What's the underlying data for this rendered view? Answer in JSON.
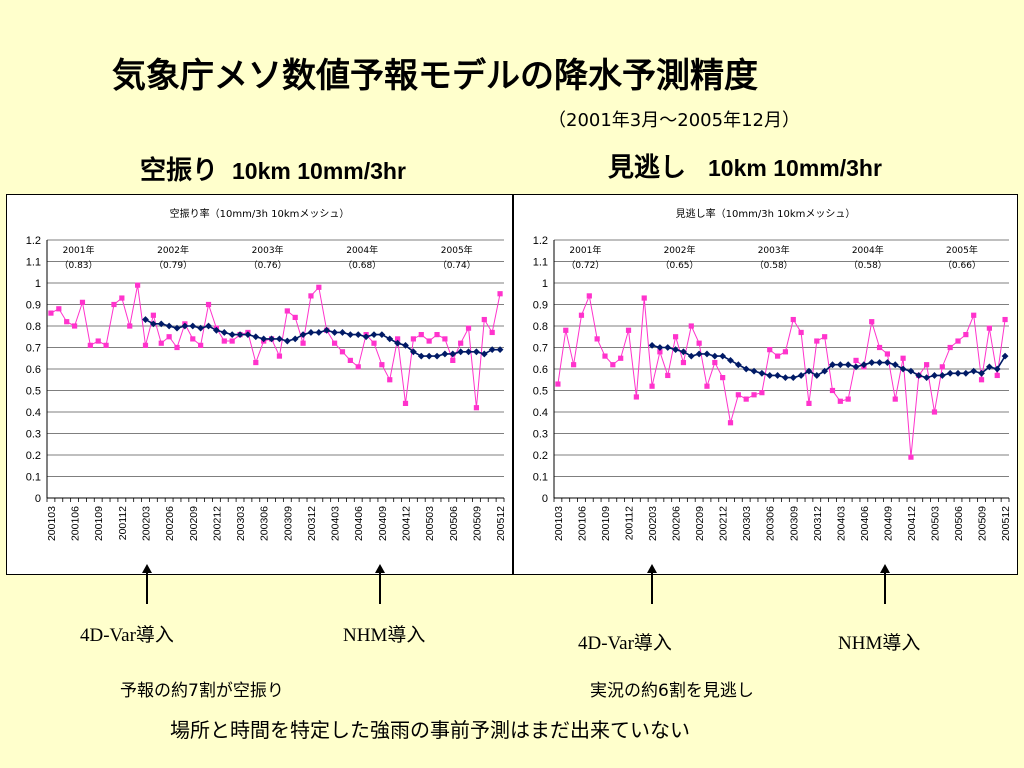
{
  "title": "気象庁メソ数値予報モデルの降水予測精度",
  "period": "（2001年3月～2005年12月）",
  "headings": {
    "left": {
      "jp": "空振り",
      "en": "10km 10mm/3hr"
    },
    "right": {
      "jp": "見逃し",
      "en": "10km 10mm/3hr"
    }
  },
  "markers": {
    "var4d": "4D-Var導入",
    "nhm": "NHM導入"
  },
  "notes": {
    "left": "予報の約7割が空振り",
    "right": "実況の約6割を見逃し"
  },
  "conclusion": "場所と時間を特定した強雨の事前予測はまだ出来ていない",
  "colors": {
    "background": "#ffffcc",
    "monthly": "#ff33cc",
    "running_mean": "#001a66"
  },
  "chart_data": [
    {
      "type": "line",
      "title": "空振り率（10mm/3h  10kmメッシュ）",
      "ylim": [
        0,
        1.2
      ],
      "yticks": [
        "0",
        "0.1",
        "0.2",
        "0.3",
        "0.4",
        "0.5",
        "0.6",
        "0.7",
        "0.8",
        "0.9",
        "1",
        "1.1",
        "1.2"
      ],
      "grid": true,
      "xticks": [
        "200103",
        "200106",
        "200109",
        "200112",
        "200203",
        "200206",
        "200209",
        "200212",
        "200303",
        "200306",
        "200309",
        "200312",
        "200403",
        "200406",
        "200409",
        "200412",
        "200503",
        "200506",
        "200509",
        "200512"
      ],
      "year_annotations": [
        {
          "year": "2001年",
          "value": "（0.83）"
        },
        {
          "year": "2002年",
          "value": "（0.79）"
        },
        {
          "year": "2003年",
          "value": "（0.76）"
        },
        {
          "year": "2004年",
          "value": "（0.68）"
        },
        {
          "year": "2005年",
          "value": "（0.74）"
        }
      ],
      "series": [
        {
          "kind": "monthly",
          "values": [
            0.86,
            0.88,
            0.82,
            0.8,
            0.91,
            0.71,
            0.73,
            0.71,
            0.9,
            0.93,
            0.8,
            0.99,
            0.71,
            0.85,
            0.72,
            0.75,
            0.7,
            0.81,
            0.74,
            0.71,
            0.9,
            0.79,
            0.73,
            0.73,
            0.76,
            0.77,
            0.63,
            0.73,
            0.74,
            0.66,
            0.87,
            0.84,
            0.72,
            0.94,
            0.98,
            0.78,
            0.72,
            0.68,
            0.64,
            0.61,
            0.76,
            0.72,
            0.62,
            0.55,
            0.74,
            0.44,
            0.74,
            0.76,
            0.73,
            0.76,
            0.74,
            0.64,
            0.72,
            0.79,
            0.42,
            0.83,
            0.77,
            0.95
          ]
        },
        {
          "kind": "running_mean",
          "start_index": 12,
          "values": [
            0.83,
            0.81,
            0.81,
            0.8,
            0.79,
            0.8,
            0.8,
            0.79,
            0.8,
            0.78,
            0.77,
            0.76,
            0.76,
            0.76,
            0.75,
            0.74,
            0.74,
            0.74,
            0.73,
            0.74,
            0.76,
            0.77,
            0.77,
            0.78,
            0.77,
            0.77,
            0.76,
            0.76,
            0.75,
            0.76,
            0.76,
            0.74,
            0.72,
            0.71,
            0.68,
            0.66,
            0.66,
            0.66,
            0.67,
            0.67,
            0.68,
            0.68,
            0.68,
            0.67,
            0.69,
            0.69
          ]
        }
      ]
    },
    {
      "type": "line",
      "title": "見逃し率（10mm/3h  10kmメッシュ）",
      "ylim": [
        0,
        1.2
      ],
      "yticks": [
        "0",
        "0.1",
        "0.2",
        "0.3",
        "0.4",
        "0.5",
        "0.6",
        "0.7",
        "0.8",
        "0.9",
        "1",
        "1.1",
        "1.2"
      ],
      "grid": true,
      "xticks": [
        "200103",
        "200106",
        "200109",
        "200112",
        "200203",
        "200206",
        "200209",
        "200212",
        "200303",
        "200306",
        "200309",
        "200312",
        "200403",
        "200406",
        "200409",
        "200412",
        "200503",
        "200506",
        "200509",
        "200512"
      ],
      "year_annotations": [
        {
          "year": "2001年",
          "value": "（0.72）"
        },
        {
          "year": "2002年",
          "value": "（0.65）"
        },
        {
          "year": "2003年",
          "value": "（0.58）"
        },
        {
          "year": "2004年",
          "value": "（0.58）"
        },
        {
          "year": "2005年",
          "value": "（0.66）"
        }
      ],
      "series": [
        {
          "kind": "monthly",
          "values": [
            0.53,
            0.78,
            0.62,
            0.85,
            0.94,
            0.74,
            0.66,
            0.62,
            0.65,
            0.78,
            0.47,
            0.93,
            0.52,
            0.68,
            0.57,
            0.75,
            0.63,
            0.8,
            0.72,
            0.52,
            0.63,
            0.56,
            0.35,
            0.48,
            0.46,
            0.48,
            0.49,
            0.69,
            0.66,
            0.68,
            0.83,
            0.77,
            0.44,
            0.73,
            0.75,
            0.5,
            0.45,
            0.46,
            0.64,
            0.61,
            0.82,
            0.7,
            0.67,
            0.46,
            0.65,
            0.19,
            0.57,
            0.62,
            0.4,
            0.61,
            0.7,
            0.73,
            0.76,
            0.85,
            0.55,
            0.79,
            0.57,
            0.83
          ]
        },
        {
          "kind": "running_mean",
          "start_index": 12,
          "values": [
            0.71,
            0.7,
            0.7,
            0.69,
            0.68,
            0.66,
            0.67,
            0.67,
            0.66,
            0.66,
            0.64,
            0.62,
            0.6,
            0.59,
            0.58,
            0.57,
            0.57,
            0.56,
            0.56,
            0.57,
            0.59,
            0.57,
            0.59,
            0.62,
            0.62,
            0.62,
            0.61,
            0.62,
            0.63,
            0.63,
            0.63,
            0.62,
            0.6,
            0.59,
            0.57,
            0.56,
            0.57,
            0.57,
            0.58,
            0.58,
            0.58,
            0.59,
            0.58,
            0.61,
            0.6,
            0.66
          ]
        }
      ]
    }
  ]
}
